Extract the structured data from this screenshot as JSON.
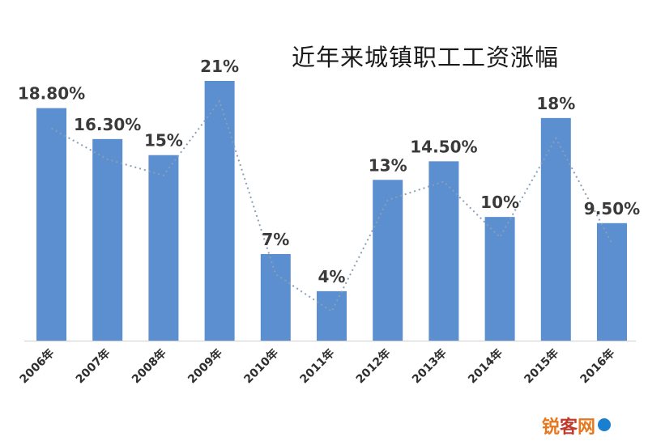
{
  "chart_data": {
    "type": "bar",
    "title": "近年来城镇职工工资涨幅",
    "categories": [
      "2006年",
      "2007年",
      "2008年",
      "2009年",
      "2010年",
      "2011年",
      "2012年",
      "2013年",
      "2014年",
      "2015年",
      "2016年"
    ],
    "values": [
      18.8,
      16.3,
      15,
      21,
      7,
      4,
      13,
      14.5,
      10,
      18,
      9.5
    ],
    "data_labels": [
      "18.80%",
      "16.30%",
      "15%",
      "21%",
      "7%",
      "4%",
      "13%",
      "14.50%",
      "10%",
      "18%",
      "9.50%"
    ],
    "trend_line": {
      "style": "dotted",
      "color": "#8a9fb5"
    },
    "bar_color": "#5b8fd0",
    "ylim": [
      0,
      22
    ],
    "grid": false,
    "legend": "none"
  },
  "watermark": {
    "part1": "锐",
    "part2": "客",
    "part3": "网"
  }
}
